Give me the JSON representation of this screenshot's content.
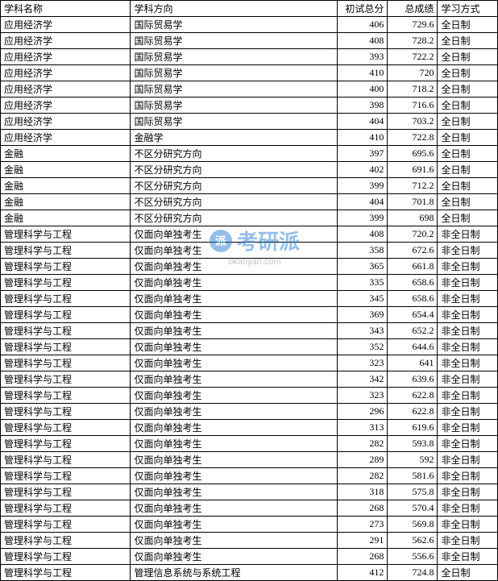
{
  "table": {
    "headers": [
      "学科名称",
      "学科方向",
      "初试总分",
      "总成绩",
      "学习方式"
    ],
    "background_color": "#ffffff",
    "border_color": "#000000",
    "font_size": 12,
    "rows": [
      [
        "应用经济学",
        "国际贸易学",
        "406",
        "729.6",
        "全日制"
      ],
      [
        "应用经济学",
        "国际贸易学",
        "408",
        "728.2",
        "全日制"
      ],
      [
        "应用经济学",
        "国际贸易学",
        "393",
        "722.2",
        "全日制"
      ],
      [
        "应用经济学",
        "国际贸易学",
        "410",
        "720",
        "全日制"
      ],
      [
        "应用经济学",
        "国际贸易学",
        "400",
        "718.2",
        "全日制"
      ],
      [
        "应用经济学",
        "国际贸易学",
        "398",
        "716.6",
        "全日制"
      ],
      [
        "应用经济学",
        "国际贸易学",
        "404",
        "703.2",
        "全日制"
      ],
      [
        "应用经济学",
        "金融学",
        "410",
        "722.8",
        "全日制"
      ],
      [
        "金融",
        "不区分研究方向",
        "397",
        "695.6",
        "全日制"
      ],
      [
        "金融",
        "不区分研究方向",
        "402",
        "691.6",
        "全日制"
      ],
      [
        "金融",
        "不区分研究方向",
        "399",
        "712.2",
        "全日制"
      ],
      [
        "金融",
        "不区分研究方向",
        "404",
        "701.8",
        "全日制"
      ],
      [
        "金融",
        "不区分研究方向",
        "399",
        "698",
        "全日制"
      ],
      [
        "管理科学与工程",
        "仅面向单独考生",
        "408",
        "720.2",
        "非全日制"
      ],
      [
        "管理科学与工程",
        "仅面向单独考生",
        "358",
        "672.6",
        "非全日制"
      ],
      [
        "管理科学与工程",
        "仅面向单独考生",
        "365",
        "661.8",
        "非全日制"
      ],
      [
        "管理科学与工程",
        "仅面向单独考生",
        "335",
        "658.6",
        "非全日制"
      ],
      [
        "管理科学与工程",
        "仅面向单独考生",
        "345",
        "658.6",
        "非全日制"
      ],
      [
        "管理科学与工程",
        "仅面向单独考生",
        "369",
        "654.4",
        "非全日制"
      ],
      [
        "管理科学与工程",
        "仅面向单独考生",
        "343",
        "652.2",
        "非全日制"
      ],
      [
        "管理科学与工程",
        "仅面向单独考生",
        "352",
        "644.6",
        "非全日制"
      ],
      [
        "管理科学与工程",
        "仅面向单独考生",
        "323",
        "641",
        "非全日制"
      ],
      [
        "管理科学与工程",
        "仅面向单独考生",
        "342",
        "639.6",
        "非全日制"
      ],
      [
        "管理科学与工程",
        "仅面向单独考生",
        "323",
        "622.8",
        "非全日制"
      ],
      [
        "管理科学与工程",
        "仅面向单独考生",
        "296",
        "622.8",
        "非全日制"
      ],
      [
        "管理科学与工程",
        "仅面向单独考生",
        "313",
        "619.6",
        "非全日制"
      ],
      [
        "管理科学与工程",
        "仅面向单独考生",
        "282",
        "593.8",
        "非全日制"
      ],
      [
        "管理科学与工程",
        "仅面向单独考生",
        "289",
        "592",
        "非全日制"
      ],
      [
        "管理科学与工程",
        "仅面向单独考生",
        "282",
        "581.6",
        "非全日制"
      ],
      [
        "管理科学与工程",
        "仅面向单独考生",
        "318",
        "575.8",
        "非全日制"
      ],
      [
        "管理科学与工程",
        "仅面向单独考生",
        "268",
        "570.4",
        "非全日制"
      ],
      [
        "管理科学与工程",
        "仅面向单独考生",
        "273",
        "569.8",
        "非全日制"
      ],
      [
        "管理科学与工程",
        "仅面向单独考生",
        "291",
        "562.6",
        "非全日制"
      ],
      [
        "管理科学与工程",
        "仅面向单独考生",
        "268",
        "556.6",
        "非全日制"
      ],
      [
        "管理科学与工程",
        "管理信息系统与系统工程",
        "412",
        "724.8",
        "全日制"
      ]
    ]
  },
  "watermark": {
    "logo_text": "派",
    "logo_color": "#2a7fd4",
    "brand_text": "考研派",
    "brand_color": "#2a7fd4",
    "url_text": "okaoyan.com",
    "url_color": "#888888"
  }
}
